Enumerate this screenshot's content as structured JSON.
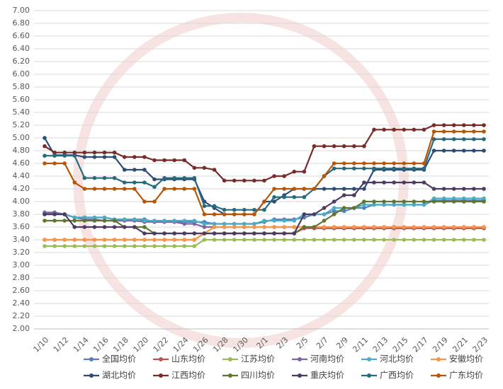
{
  "chart_data": {
    "type": "line",
    "categories": [
      "1/10",
      null,
      "1/12",
      null,
      "1/14",
      null,
      "1/16",
      null,
      "1/18",
      null,
      "1/20",
      null,
      "1/22",
      null,
      "1/24",
      null,
      "1/26",
      null,
      "1/28",
      null,
      "1/30",
      null,
      "2/1",
      null,
      "2/3",
      null,
      "2/5",
      null,
      "2/7",
      null,
      "2/9",
      null,
      "2/11",
      null,
      "2/13",
      null,
      "2/15",
      null,
      "2/17",
      null,
      "2/19",
      null,
      "2/21",
      null,
      "2/23"
    ],
    "ylim": [
      2.0,
      7.0
    ],
    "yticks": [
      {
        "value": 2.0,
        "label": "2.00"
      },
      {
        "value": 2.2,
        "label": "2.20"
      },
      {
        "value": 2.4,
        "label": "2.40"
      },
      {
        "value": 2.6,
        "label": "2.60"
      },
      {
        "value": 2.8,
        "label": "2.80"
      },
      {
        "value": 3.0,
        "label": "3.00"
      },
      {
        "value": 3.2,
        "label": "3.20"
      },
      {
        "value": 3.4,
        "label": "3.40"
      },
      {
        "value": 3.6,
        "label": "3.60"
      },
      {
        "value": 3.8,
        "label": "3.80"
      },
      {
        "value": 4.0,
        "label": "4.00"
      },
      {
        "value": 4.2,
        "label": "4.20"
      },
      {
        "value": 4.4,
        "label": "4.40"
      },
      {
        "value": 4.6,
        "label": "4.60"
      },
      {
        "value": 4.8,
        "label": "4.80"
      },
      {
        "value": 5.0,
        "label": "5.00"
      },
      {
        "value": 5.2,
        "label": "5.20"
      },
      {
        "value": 5.4,
        "label": "5.40"
      },
      {
        "value": 5.6,
        "label": "5.60"
      },
      {
        "value": 5.8,
        "label": "5.80"
      },
      {
        "value": 6.0,
        "label": "6.00"
      },
      {
        "value": 6.2,
        "label": "6.20"
      },
      {
        "value": 6.4,
        "label": "6.40"
      },
      {
        "value": 6.6,
        "label": "6.60"
      },
      {
        "value": 6.8,
        "label": "6.80"
      },
      {
        "value": 7.0,
        "label": "7.00"
      }
    ],
    "grid": true,
    "series": [
      {
        "name": "全国均价",
        "color": "#4f81bd",
        "values": [
          3.83,
          3.83,
          3.8,
          3.75,
          3.75,
          3.75,
          3.75,
          3.72,
          3.72,
          3.72,
          3.72,
          3.68,
          3.68,
          3.68,
          3.68,
          3.68,
          3.68,
          3.65,
          3.65,
          3.65,
          3.65,
          3.65,
          3.68,
          3.72,
          3.72,
          3.72,
          3.75,
          3.8,
          3.8,
          3.85,
          3.85,
          3.9,
          3.9,
          3.95,
          3.95,
          3.95,
          3.95,
          3.95,
          3.95,
          4.02,
          4.02,
          4.02,
          4.02,
          4.02,
          4.02
        ]
      },
      {
        "name": "山东均价",
        "color": "#c0504d",
        "values": [
          3.4,
          3.4,
          3.4,
          3.4,
          3.4,
          3.4,
          3.4,
          3.4,
          3.4,
          3.4,
          3.4,
          3.4,
          3.4,
          3.4,
          3.4,
          3.4,
          3.5,
          3.5,
          3.5,
          3.5,
          3.5,
          3.5,
          3.5,
          3.5,
          3.5,
          3.5,
          3.58,
          3.58,
          3.58,
          3.58,
          3.58,
          3.58,
          3.58,
          3.58,
          3.58,
          3.58,
          3.58,
          3.58,
          3.58,
          3.58,
          3.58,
          3.58,
          3.58,
          3.58,
          3.58
        ]
      },
      {
        "name": "江苏均价",
        "color": "#9bbb59",
        "values": [
          3.3,
          3.3,
          3.3,
          3.3,
          3.3,
          3.3,
          3.3,
          3.3,
          3.3,
          3.3,
          3.3,
          3.3,
          3.3,
          3.3,
          3.3,
          3.3,
          3.4,
          3.4,
          3.4,
          3.4,
          3.4,
          3.4,
          3.4,
          3.4,
          3.4,
          3.4,
          3.4,
          3.4,
          3.4,
          3.4,
          3.4,
          3.4,
          3.4,
          3.4,
          3.4,
          3.4,
          3.4,
          3.4,
          3.4,
          3.4,
          3.4,
          3.4,
          3.4,
          3.4,
          3.4
        ]
      },
      {
        "name": "河南均价",
        "color": "#8064a2",
        "values": [
          3.82,
          3.82,
          3.8,
          3.75,
          3.72,
          3.72,
          3.7,
          3.7,
          3.7,
          3.7,
          3.68,
          3.68,
          3.68,
          3.68,
          3.65,
          3.65,
          3.6,
          3.6,
          3.6,
          3.6,
          3.6,
          3.6,
          3.6,
          3.6,
          3.6,
          3.6,
          3.6,
          3.6,
          3.6,
          3.6,
          3.6,
          3.6,
          3.6,
          3.6,
          3.6,
          3.6,
          3.6,
          3.6,
          3.6,
          3.6,
          3.6,
          3.6,
          3.6,
          3.6,
          3.6
        ]
      },
      {
        "name": "河北均价",
        "color": "#4bacc6",
        "values": [
          3.8,
          3.8,
          3.8,
          3.75,
          3.75,
          3.75,
          3.75,
          3.72,
          3.72,
          3.72,
          3.7,
          3.7,
          3.7,
          3.7,
          3.7,
          3.7,
          3.65,
          3.65,
          3.65,
          3.65,
          3.65,
          3.65,
          3.7,
          3.7,
          3.7,
          3.7,
          3.8,
          3.8,
          3.8,
          3.9,
          3.9,
          3.9,
          3.95,
          3.95,
          3.95,
          3.95,
          3.95,
          3.95,
          3.95,
          4.05,
          4.05,
          4.05,
          4.05,
          4.05,
          4.05
        ]
      },
      {
        "name": "安徽均价",
        "color": "#f79646",
        "values": [
          3.4,
          3.4,
          3.4,
          3.4,
          3.4,
          3.4,
          3.4,
          3.4,
          3.4,
          3.4,
          3.4,
          3.4,
          3.4,
          3.4,
          3.4,
          3.4,
          3.5,
          3.6,
          3.6,
          3.6,
          3.6,
          3.6,
          3.6,
          3.6,
          3.6,
          3.6,
          3.6,
          3.6,
          3.6,
          3.6,
          3.6,
          3.6,
          3.6,
          3.6,
          3.6,
          3.6,
          3.6,
          3.6,
          3.6,
          3.6,
          3.6,
          3.6,
          3.6,
          3.6,
          3.6
        ]
      },
      {
        "name": "湖北均价",
        "color": "#2c4d75",
        "values": [
          5.0,
          4.73,
          4.73,
          4.73,
          4.7,
          4.7,
          4.7,
          4.7,
          4.5,
          4.5,
          4.5,
          4.35,
          4.35,
          4.35,
          4.35,
          4.35,
          4.0,
          3.9,
          3.8,
          3.8,
          3.8,
          3.8,
          4.0,
          4.0,
          4.1,
          4.2,
          4.2,
          4.2,
          4.2,
          4.2,
          4.2,
          4.2,
          4.2,
          4.5,
          4.5,
          4.5,
          4.5,
          4.5,
          4.5,
          4.8,
          4.8,
          4.8,
          4.8,
          4.8,
          4.8
        ]
      },
      {
        "name": "江西均价",
        "color": "#772c2a",
        "values": [
          4.87,
          4.77,
          4.77,
          4.77,
          4.77,
          4.77,
          4.77,
          4.77,
          4.7,
          4.7,
          4.7,
          4.65,
          4.65,
          4.65,
          4.65,
          4.53,
          4.53,
          4.5,
          4.33,
          4.33,
          4.33,
          4.33,
          4.33,
          4.4,
          4.4,
          4.47,
          4.47,
          4.87,
          4.87,
          4.87,
          4.87,
          4.87,
          4.87,
          5.13,
          5.13,
          5.13,
          5.13,
          5.13,
          5.13,
          5.2,
          5.2,
          5.2,
          5.2,
          5.2,
          5.2
        ]
      },
      {
        "name": "四川均价",
        "color": "#5f7530",
        "values": [
          3.7,
          3.7,
          3.7,
          3.7,
          3.7,
          3.7,
          3.7,
          3.7,
          3.6,
          3.6,
          3.6,
          3.5,
          3.5,
          3.5,
          3.5,
          3.5,
          3.5,
          3.5,
          3.5,
          3.5,
          3.5,
          3.5,
          3.5,
          3.5,
          3.5,
          3.5,
          3.6,
          3.6,
          3.7,
          3.8,
          3.9,
          3.9,
          4.0,
          4.0,
          4.0,
          4.0,
          4.0,
          4.0,
          4.0,
          4.0,
          4.0,
          4.0,
          4.0,
          4.0,
          4.0
        ]
      },
      {
        "name": "重庆均价",
        "color": "#4d3b62",
        "values": [
          3.8,
          3.8,
          3.8,
          3.6,
          3.6,
          3.6,
          3.6,
          3.6,
          3.6,
          3.6,
          3.5,
          3.5,
          3.5,
          3.5,
          3.5,
          3.5,
          3.5,
          3.5,
          3.5,
          3.5,
          3.5,
          3.5,
          3.5,
          3.5,
          3.5,
          3.5,
          3.8,
          3.8,
          3.9,
          4.0,
          4.1,
          4.1,
          4.3,
          4.3,
          4.3,
          4.3,
          4.3,
          4.3,
          4.3,
          4.2,
          4.2,
          4.2,
          4.2,
          4.2,
          4.2
        ]
      },
      {
        "name": "广西均价",
        "color": "#276a7c",
        "values": [
          4.72,
          4.72,
          4.72,
          4.72,
          4.37,
          4.37,
          4.37,
          4.37,
          4.3,
          4.3,
          4.3,
          4.23,
          4.37,
          4.37,
          4.37,
          4.37,
          3.93,
          3.93,
          3.87,
          3.87,
          3.87,
          3.87,
          3.87,
          4.07,
          4.07,
          4.07,
          4.07,
          4.2,
          4.4,
          4.52,
          4.52,
          4.52,
          4.52,
          4.52,
          4.52,
          4.52,
          4.52,
          4.52,
          4.52,
          4.98,
          4.98,
          4.98,
          4.98,
          4.98,
          4.98
        ]
      },
      {
        "name": "广东均价",
        "color": "#b65708",
        "values": [
          4.6,
          4.6,
          4.6,
          4.3,
          4.2,
          4.2,
          4.2,
          4.2,
          4.2,
          4.2,
          4.0,
          4.0,
          4.2,
          4.2,
          4.2,
          4.2,
          3.8,
          3.8,
          3.8,
          3.8,
          3.8,
          3.8,
          4.0,
          4.2,
          4.2,
          4.2,
          4.2,
          4.2,
          4.4,
          4.6,
          4.6,
          4.6,
          4.6,
          4.6,
          4.6,
          4.6,
          4.6,
          4.6,
          4.6,
          5.1,
          5.1,
          5.1,
          5.1,
          5.1,
          5.1
        ]
      }
    ]
  }
}
